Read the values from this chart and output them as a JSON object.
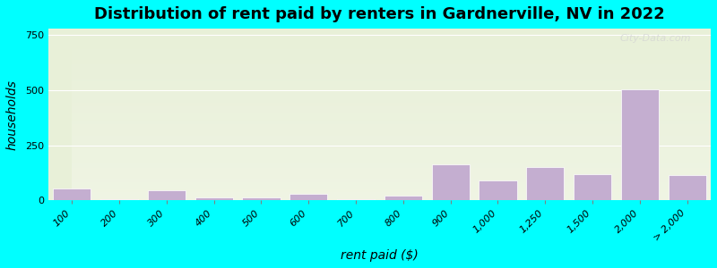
{
  "title": "Distribution of rent paid by renters in Gardnerville, NV in 2022",
  "xlabel": "rent paid ($)",
  "ylabel": "households",
  "background_outer": "#00ffff",
  "background_inner_top": "#e8f0d8",
  "background_inner_bottom": "#f5f5f5",
  "bar_color": "#c4aed0",
  "bar_edge_color": "#ffffff",
  "categories": [
    "100",
    "200",
    "300",
    "400",
    "500",
    "600",
    "700",
    "800",
    "900",
    "1,000",
    "1,250",
    "1,500",
    "2,000",
    "> 2,000"
  ],
  "values": [
    55,
    5,
    45,
    15,
    15,
    30,
    5,
    20,
    165,
    90,
    150,
    120,
    505,
    115
  ],
  "ylim": [
    0,
    780
  ],
  "yticks": [
    0,
    250,
    500,
    750
  ],
  "title_fontsize": 13,
  "axis_fontsize": 10,
  "tick_fontsize": 8,
  "watermark": "City-Data.com"
}
